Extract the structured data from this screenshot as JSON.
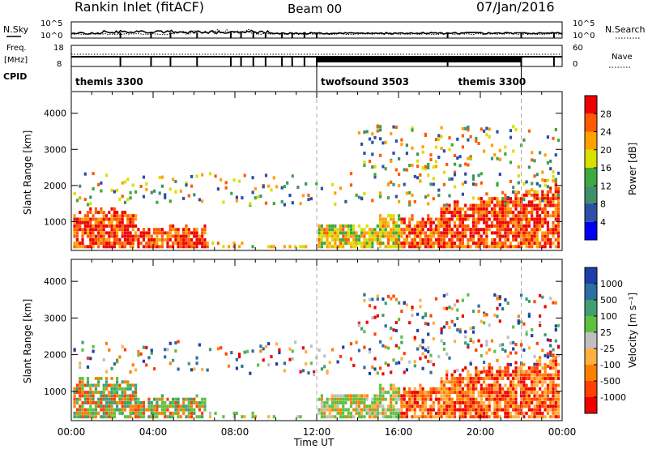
{
  "header": {
    "title": "Rankin Inlet (fitACF)",
    "beam": "Beam 00",
    "date": "07/Jan/2016"
  },
  "top_panel": {
    "left_label": "N.Sky",
    "left_ticks": [
      "10^5",
      "10^0"
    ],
    "right_ticks": [
      "10^5",
      "10^0"
    ],
    "right_label": "N.Search"
  },
  "freq_panel": {
    "label_line1": "Freq.",
    "label_line2": "[MHz]",
    "left_ticks": [
      "18",
      "8"
    ],
    "right_ticks": [
      "60",
      "0"
    ],
    "right_label": "Nave"
  },
  "cpid": {
    "label": "CPID",
    "segments": [
      {
        "name": "themis 3300",
        "start_hr": 0,
        "end_hr": 12
      },
      {
        "name": "twofsound 3503",
        "start_hr": 12,
        "end_hr": 22
      },
      {
        "name": "themis 3300",
        "start_hr": 22,
        "end_hr": 24
      }
    ]
  },
  "colors": {
    "power": [
      "#0000ee",
      "#2c4fa8",
      "#3f8f6a",
      "#3fa83f",
      "#d8e000",
      "#ffa000",
      "#ff5a00",
      "#ee0000"
    ],
    "velocity": [
      "#1e3fa8",
      "#2c6fa0",
      "#3f9f70",
      "#5fc040",
      "#c0c0c0",
      "#ffb040",
      "#ff8000",
      "#ff4000",
      "#ee0000"
    ]
  },
  "chart_data": [
    {
      "type": "heatmap",
      "panel": "power",
      "ylabel": "Slant Range [km]",
      "xlabel": "",
      "x_range": [
        0,
        24
      ],
      "y_range": [
        200,
        4600
      ],
      "y_ticks": [
        "1000",
        "2000",
        "3000",
        "4000"
      ],
      "x_ticks": [
        "00:00",
        "04:00",
        "08:00",
        "12:00",
        "16:00",
        "20:00",
        "00:00"
      ],
      "colorbar": {
        "label": "Power [dB]",
        "ticks": [
          "4",
          "8",
          "12",
          "16",
          "20",
          "24",
          "28"
        ]
      },
      "dashed_lines_hr": [
        12,
        22
      ]
    },
    {
      "type": "heatmap",
      "panel": "velocity",
      "ylabel": "Slant Range [km]",
      "xlabel": "Time UT",
      "x_range": [
        0,
        24
      ],
      "y_range": [
        200,
        4600
      ],
      "y_ticks": [
        "1000",
        "2000",
        "3000",
        "4000"
      ],
      "x_ticks": [
        "00:00",
        "04:00",
        "08:00",
        "12:00",
        "16:00",
        "20:00",
        "00:00"
      ],
      "colorbar": {
        "label": "Velocity [m s⁻¹]",
        "ticks": [
          "1000",
          "500",
          "100",
          "25",
          "-25",
          "-100",
          "-500",
          "-1000"
        ]
      },
      "dashed_lines_hr": [
        12,
        22
      ]
    }
  ]
}
